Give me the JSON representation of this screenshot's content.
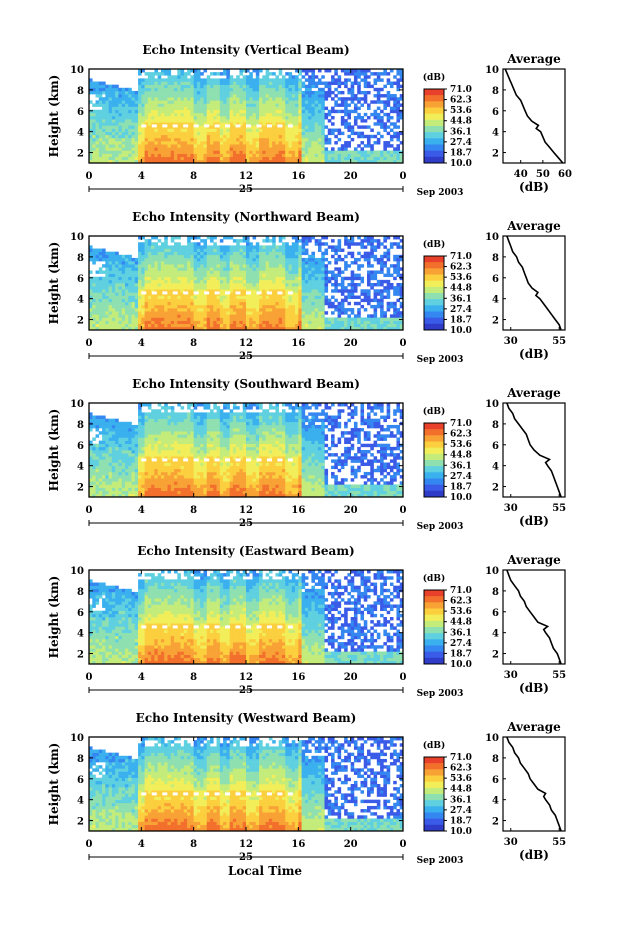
{
  "figure": {
    "date_label": "Sep 2003",
    "day_label": "25",
    "xlabel": "Local Time",
    "ylabel": "Height (km)",
    "colorbar_unit": "(dB)",
    "colorbar_ticks": [
      "71.0",
      "62.3",
      "53.6",
      "44.8",
      "36.1",
      "27.4",
      "18.7",
      "10.0"
    ],
    "colorbar_colors": [
      "#e8402a",
      "#f2702c",
      "#f8a236",
      "#fbcf3e",
      "#f2ee5a",
      "#c4ec7a",
      "#8fe0b0",
      "#5fd0e0",
      "#3ab0ee",
      "#3486f0",
      "#3a5ae8",
      "#2f3cc8"
    ],
    "avg_title": "Average",
    "avg_xlabel": "(dB)"
  },
  "chart_data": [
    {
      "type": "heatmap",
      "title": "Echo Intensity (Vertical Beam)",
      "xlabel": "Local Time",
      "ylabel": "Height (km)",
      "x_ticks": [
        "0",
        "4",
        "8",
        "12",
        "16",
        "20",
        "0"
      ],
      "xlim": [
        0,
        24
      ],
      "y_ticks": [
        "2",
        "4",
        "6",
        "8",
        "10"
      ],
      "ylim": [
        1,
        10
      ],
      "colorbar": {
        "label": "(dB)",
        "min": 10.0,
        "max": 71.0
      },
      "profile": {
        "title": "Average",
        "xlabel": "(dB)",
        "x_ticks": [
          "40",
          "50",
          "60"
        ],
        "xlim": [
          32,
          60
        ],
        "height": [
          1.0,
          1.5,
          2.0,
          2.5,
          3.0,
          3.5,
          4.0,
          4.3,
          4.6,
          5.0,
          5.5,
          6.0,
          6.5,
          7.0,
          7.5,
          8.0,
          8.5,
          9.0,
          9.5,
          10.0
        ],
        "values": [
          59,
          57,
          55,
          53,
          51,
          50,
          49,
          47,
          48,
          45,
          43,
          42,
          41,
          40,
          38,
          37,
          36,
          35,
          34,
          33
        ]
      }
    },
    {
      "type": "heatmap",
      "title": "Echo Intensity (Northward Beam)",
      "xlabel": "Local Time",
      "ylabel": "Height (km)",
      "x_ticks": [
        "0",
        "4",
        "8",
        "12",
        "16",
        "20",
        "0"
      ],
      "xlim": [
        0,
        24
      ],
      "y_ticks": [
        "2",
        "4",
        "6",
        "8",
        "10"
      ],
      "ylim": [
        1,
        10
      ],
      "colorbar": {
        "label": "(dB)",
        "min": 10.0,
        "max": 71.0
      },
      "profile": {
        "title": "Average",
        "xlabel": "(dB)",
        "x_ticks": [
          "30",
          "55"
        ],
        "xlim": [
          26,
          58
        ],
        "height": [
          1.0,
          1.5,
          2.0,
          2.5,
          3.0,
          3.5,
          4.0,
          4.3,
          4.6,
          5.0,
          5.5,
          6.0,
          6.5,
          7.0,
          7.5,
          8.0,
          8.5,
          9.0,
          9.5,
          10.0
        ],
        "values": [
          56,
          55,
          53,
          51,
          49,
          47,
          45,
          43,
          44,
          41,
          39,
          38,
          37,
          36,
          34,
          33,
          31,
          30,
          29,
          28
        ]
      }
    },
    {
      "type": "heatmap",
      "title": "Echo Intensity (Southward Beam)",
      "xlabel": "Local Time",
      "ylabel": "Height (km)",
      "x_ticks": [
        "0",
        "4",
        "8",
        "12",
        "16",
        "20",
        "0"
      ],
      "xlim": [
        0,
        24
      ],
      "y_ticks": [
        "2",
        "4",
        "6",
        "8",
        "10"
      ],
      "ylim": [
        1,
        10
      ],
      "colorbar": {
        "label": "(dB)",
        "min": 10.0,
        "max": 71.0
      },
      "profile": {
        "title": "Average",
        "xlabel": "(dB)",
        "x_ticks": [
          "30",
          "55"
        ],
        "xlim": [
          26,
          58
        ],
        "height": [
          1.0,
          1.5,
          2.0,
          2.5,
          3.0,
          3.5,
          4.0,
          4.3,
          4.6,
          5.0,
          5.5,
          6.0,
          6.5,
          7.0,
          7.5,
          8.0,
          8.5,
          9.0,
          9.5,
          10.0
        ],
        "values": [
          56,
          55,
          54,
          53,
          52,
          51,
          49,
          48,
          50,
          45,
          42,
          40,
          39,
          38,
          36,
          34,
          32,
          31,
          29,
          28
        ]
      }
    },
    {
      "type": "heatmap",
      "title": "Echo Intensity (Eastward Beam)",
      "xlabel": "Local Time",
      "ylabel": "Height (km)",
      "x_ticks": [
        "0",
        "4",
        "8",
        "12",
        "16",
        "20",
        "0"
      ],
      "xlim": [
        0,
        24
      ],
      "y_ticks": [
        "2",
        "4",
        "6",
        "8",
        "10"
      ],
      "ylim": [
        1,
        10
      ],
      "colorbar": {
        "label": "(dB)",
        "min": 10.0,
        "max": 71.0
      },
      "profile": {
        "title": "Average",
        "xlabel": "(dB)",
        "x_ticks": [
          "30",
          "55"
        ],
        "xlim": [
          26,
          58
        ],
        "height": [
          1.0,
          1.5,
          2.0,
          2.5,
          3.0,
          3.5,
          4.0,
          4.3,
          4.6,
          5.0,
          5.5,
          6.0,
          6.5,
          7.0,
          7.5,
          8.0,
          8.5,
          9.0,
          9.5,
          10.0
        ],
        "values": [
          56,
          55,
          54,
          52,
          51,
          50,
          48,
          47,
          49,
          44,
          42,
          40,
          38,
          37,
          35,
          34,
          32,
          30,
          29,
          28
        ]
      }
    },
    {
      "type": "heatmap",
      "title": "Echo Intensity (Westward Beam)",
      "xlabel": "Local Time",
      "ylabel": "Height (km)",
      "x_ticks": [
        "0",
        "4",
        "8",
        "12",
        "16",
        "20",
        "0"
      ],
      "xlim": [
        0,
        24
      ],
      "y_ticks": [
        "2",
        "4",
        "6",
        "8",
        "10"
      ],
      "ylim": [
        1,
        10
      ],
      "colorbar": {
        "label": "(dB)",
        "min": 10.0,
        "max": 71.0
      },
      "profile": {
        "title": "Average",
        "xlabel": "(dB)",
        "x_ticks": [
          "30",
          "55"
        ],
        "xlim": [
          26,
          58
        ],
        "height": [
          1.0,
          1.5,
          2.0,
          2.5,
          3.0,
          3.5,
          4.0,
          4.3,
          4.6,
          5.0,
          5.5,
          6.0,
          6.5,
          7.0,
          7.5,
          8.0,
          8.5,
          9.0,
          9.5,
          10.0
        ],
        "values": [
          56,
          55,
          54,
          53,
          51,
          50,
          48,
          47,
          48,
          44,
          42,
          40,
          39,
          37,
          35,
          34,
          32,
          31,
          29,
          28
        ]
      }
    }
  ]
}
